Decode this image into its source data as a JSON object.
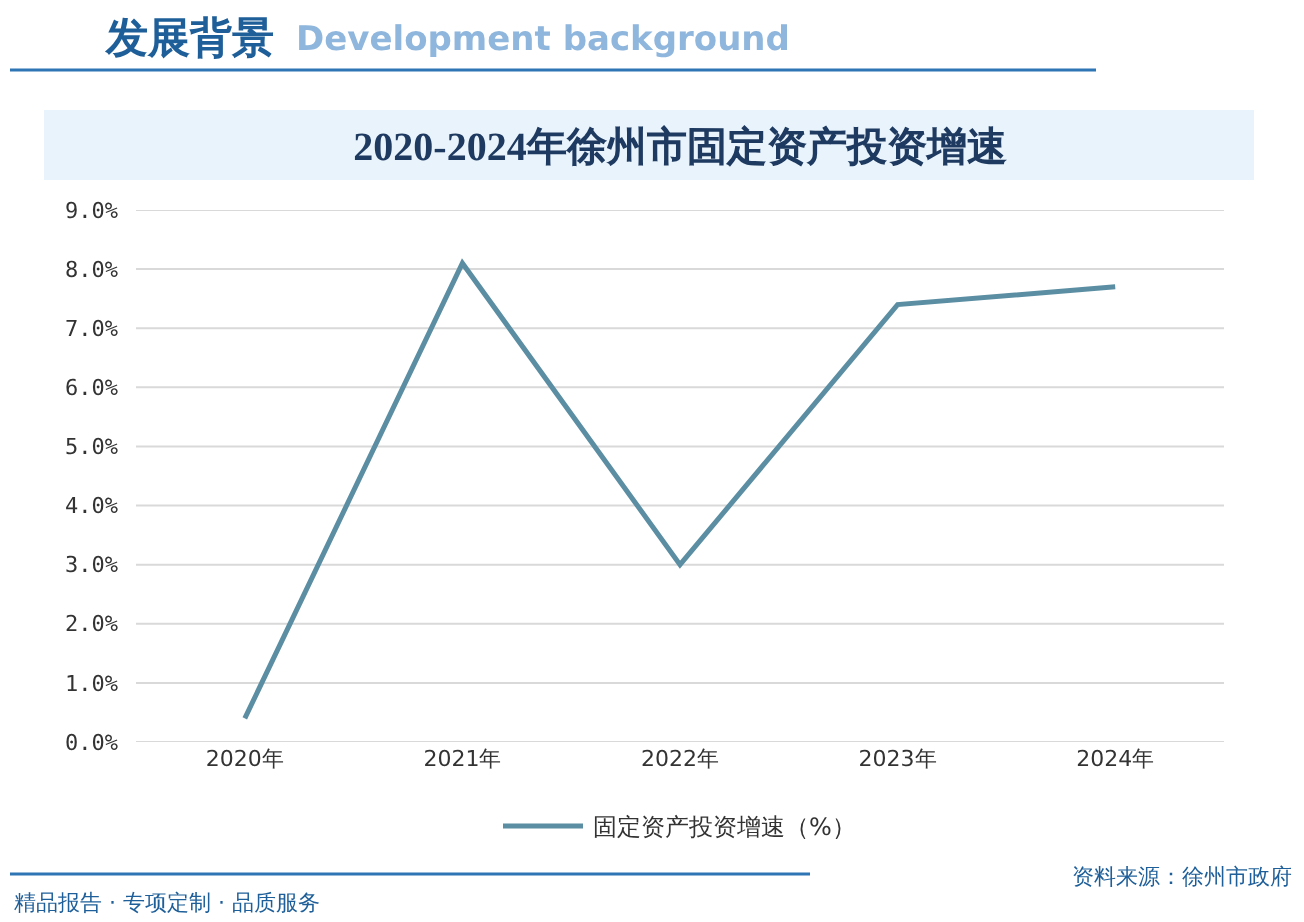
{
  "chart_data": {
    "type": "line",
    "title": "2020-2024年徐州市固定资产投资增速",
    "categories": [
      "2020年",
      "2021年",
      "2022年",
      "2023年",
      "2024年"
    ],
    "series": [
      {
        "name": "固定资产投资增速（%）",
        "color": "#5b8ea2",
        "values": [
          0.4,
          8.1,
          3.0,
          7.4,
          7.7
        ]
      }
    ],
    "ylim": [
      0,
      9
    ],
    "yticks": [
      {
        "value": 0,
        "label": "0.0%"
      },
      {
        "value": 1,
        "label": "1.0%"
      },
      {
        "value": 2,
        "label": "2.0%"
      },
      {
        "value": 3,
        "label": "3.0%"
      },
      {
        "value": 4,
        "label": "4.0%"
      },
      {
        "value": 5,
        "label": "5.0%"
      },
      {
        "value": 6,
        "label": "6.0%"
      },
      {
        "value": 7,
        "label": "7.0%"
      },
      {
        "value": 8,
        "label": "8.0%"
      },
      {
        "value": 9,
        "label": "9.0%"
      }
    ],
    "grid": "y",
    "legend": "bottom",
    "line_style": "solid",
    "annotations": [
      "发展背景",
      "Development background",
      "精品报告 · 专项定制 · 品质服务",
      "资料来源：徐州市政府"
    ]
  }
}
